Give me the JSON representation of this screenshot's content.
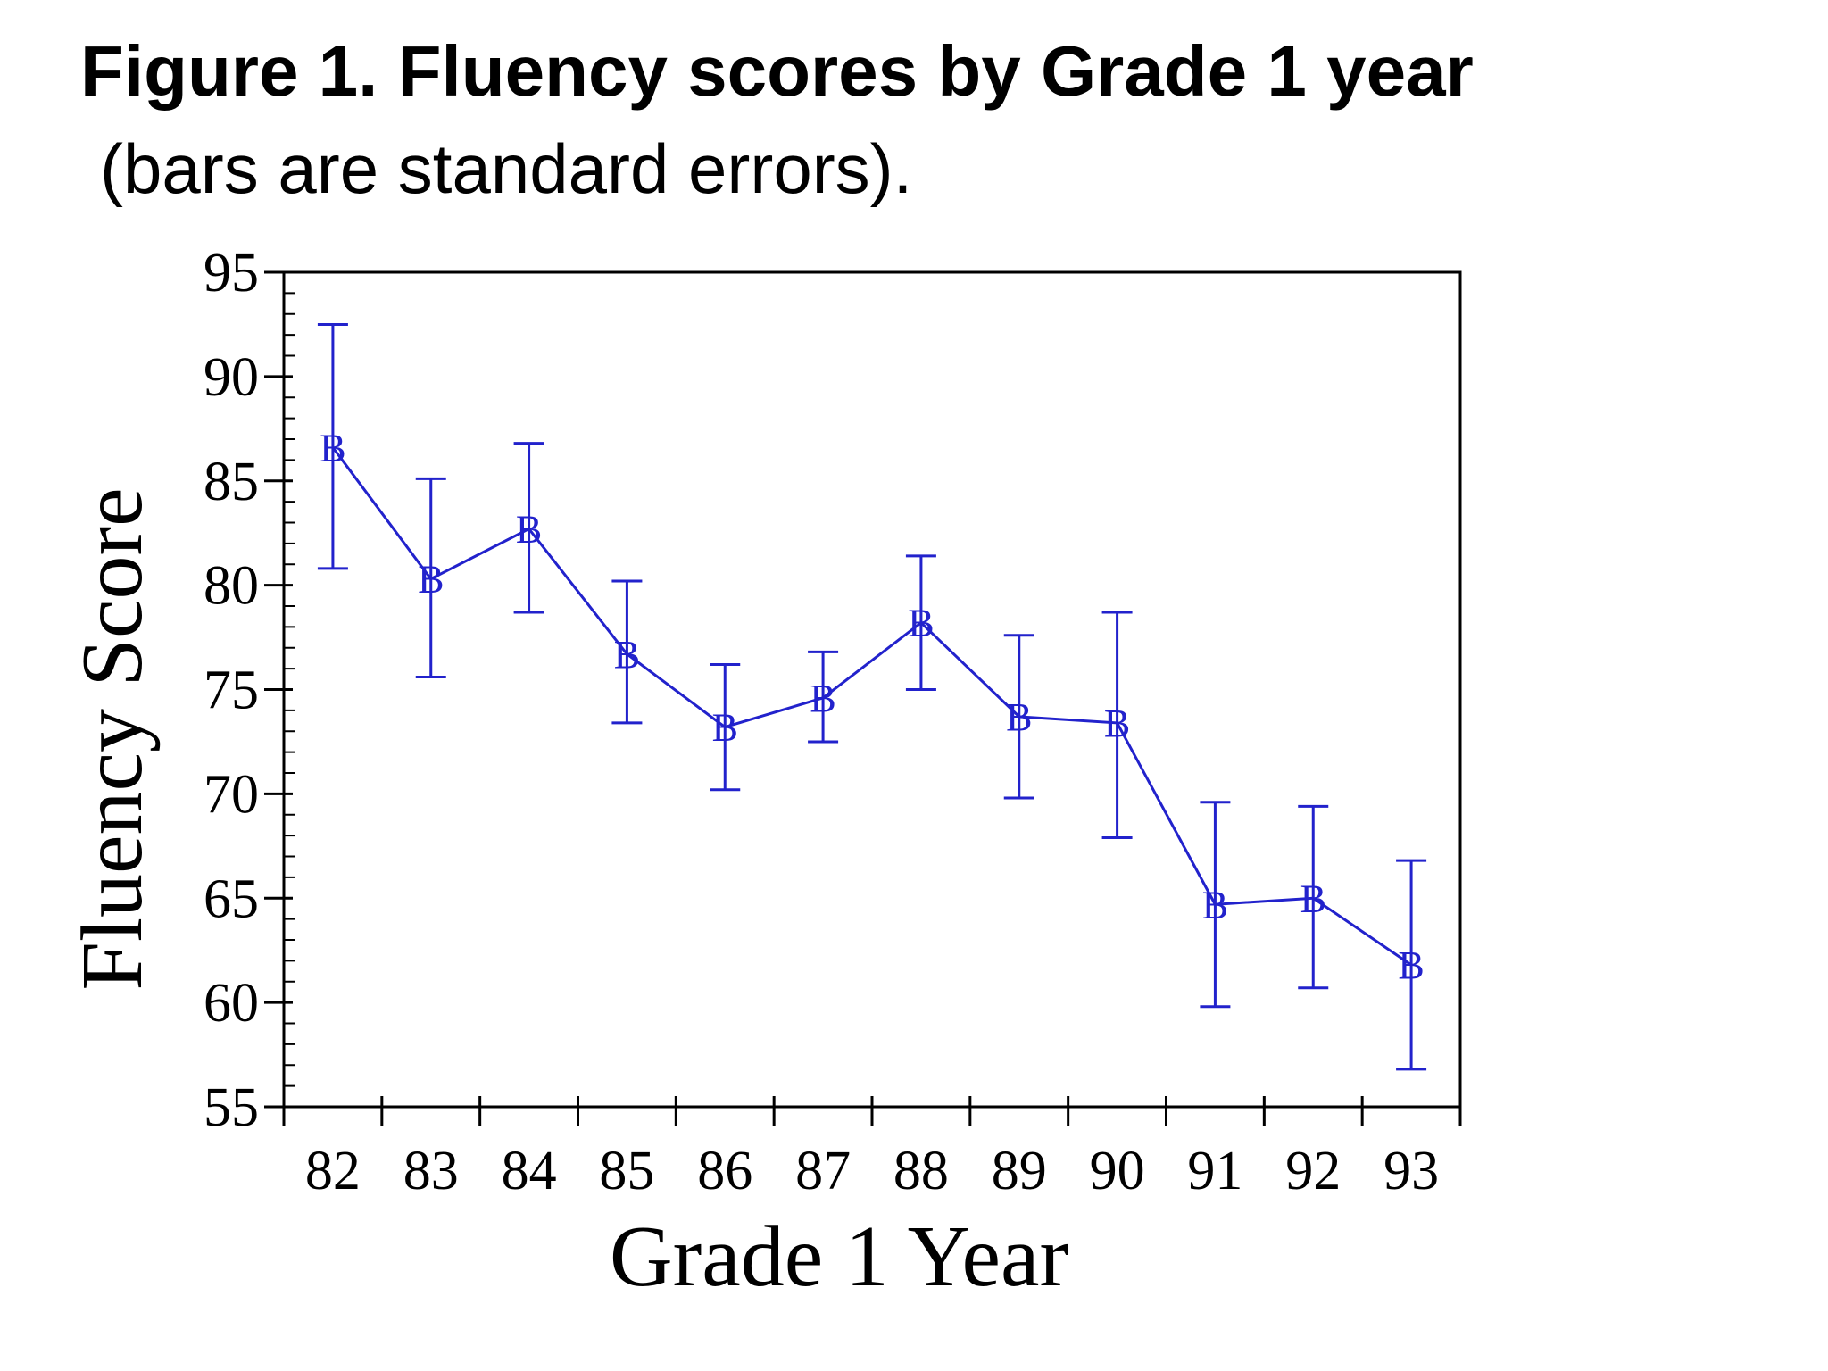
{
  "figure": {
    "title": "Figure 1.  Fluency scores by Grade 1 year",
    "subtitle": "(bars are standard errors)."
  },
  "chart_data": {
    "type": "line",
    "title": "Figure 1.  Fluency scores by Grade 1 year",
    "subtitle": "(bars are standard errors).",
    "xlabel": "Grade 1 Year",
    "ylabel": "Fluency Score",
    "ylim": [
      55,
      95
    ],
    "yticks": [
      55,
      60,
      65,
      70,
      75,
      80,
      85,
      90,
      95
    ],
    "categories": [
      "82",
      "83",
      "84",
      "85",
      "86",
      "87",
      "88",
      "89",
      "90",
      "91",
      "92",
      "93"
    ],
    "series": [
      {
        "marker": "B",
        "color": "#2222cc",
        "values": [
          86.6,
          80.3,
          82.7,
          76.7,
          73.2,
          74.6,
          78.2,
          73.7,
          73.4,
          64.7,
          65.0,
          61.8
        ],
        "error_low": [
          80.8,
          75.6,
          78.7,
          73.4,
          70.2,
          72.5,
          75.0,
          69.8,
          67.9,
          59.8,
          60.7,
          56.8
        ],
        "error_high": [
          92.5,
          85.1,
          86.8,
          80.2,
          76.2,
          76.8,
          81.4,
          77.6,
          78.7,
          69.6,
          69.4,
          66.8
        ]
      }
    ],
    "grid": false,
    "legend": "none"
  }
}
